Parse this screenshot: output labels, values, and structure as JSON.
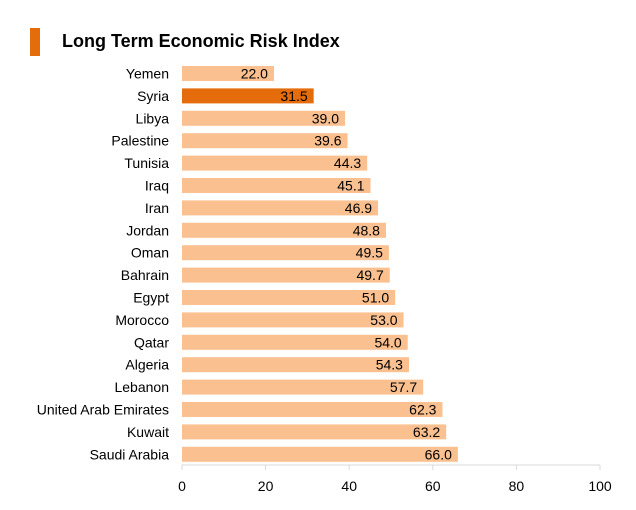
{
  "chart_data": {
    "type": "bar",
    "orientation": "horizontal",
    "title": "Long Term Economic Risk Index",
    "xlabel": "",
    "ylabel": "",
    "xlim": [
      0,
      100
    ],
    "x_ticks": [
      0,
      20,
      40,
      60,
      80,
      100
    ],
    "grid": false,
    "legend": "none",
    "categories": [
      "Yemen",
      "Syria",
      "Libya",
      "Palestine",
      "Tunisia",
      "Iraq",
      "Iran",
      "Jordan",
      "Oman",
      "Bahrain",
      "Egypt",
      "Morocco",
      "Qatar",
      "Algeria",
      "Lebanon",
      "United Arab Emirates",
      "Kuwait",
      "Saudi Arabia"
    ],
    "values": [
      22.0,
      31.5,
      39.0,
      39.6,
      44.3,
      45.1,
      46.9,
      48.8,
      49.5,
      49.7,
      51.0,
      53.0,
      54.0,
      54.3,
      57.7,
      62.3,
      63.2,
      66.0
    ],
    "value_labels": [
      "22.0",
      "31.5",
      "39.0",
      "39.6",
      "44.3",
      "45.1",
      "46.9",
      "48.8",
      "49.5",
      "49.7",
      "51.0",
      "53.0",
      "54.0",
      "54.3",
      "57.7",
      "62.3",
      "63.2",
      "66.0"
    ],
    "highlight_category": "Syria"
  },
  "colors": {
    "bar": "#fac090",
    "highlight_bar": "#e46c0a",
    "title_accent": "#e46c0a",
    "axis": "#d9d9d9",
    "text": "#000000"
  }
}
